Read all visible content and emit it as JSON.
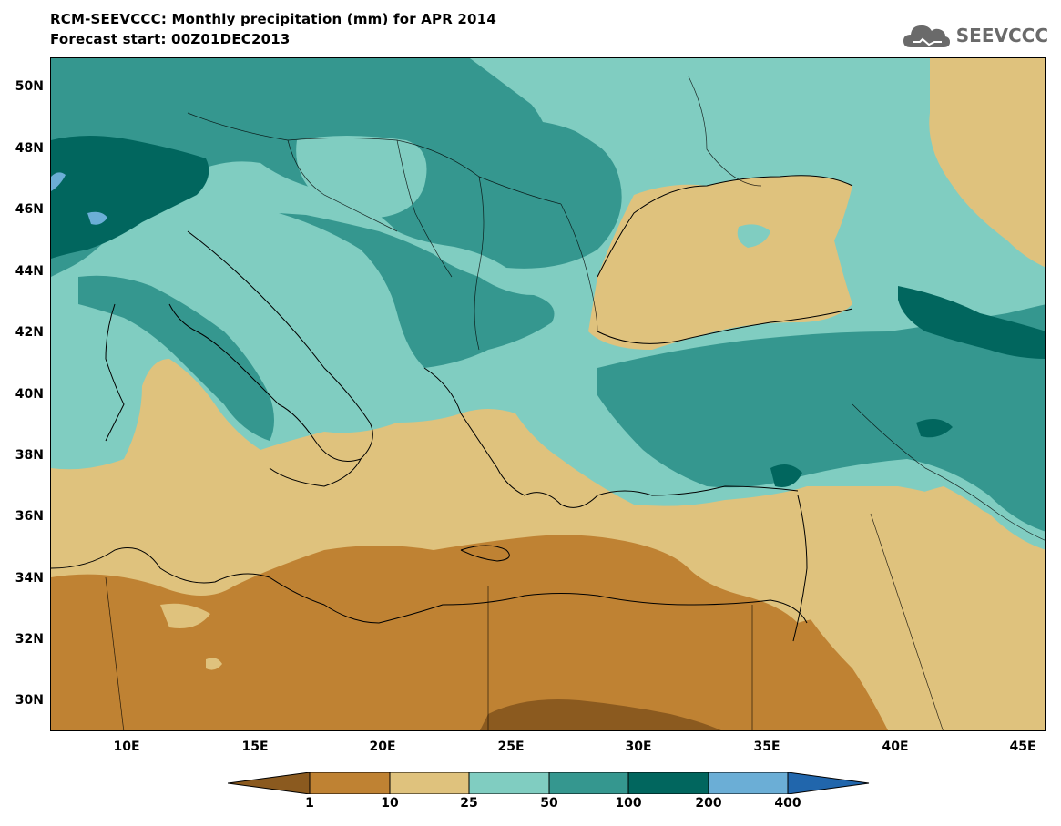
{
  "header": {
    "title": "RCM-SEEVCCC: Monthly precipitation (mm) for APR 2014",
    "subtitle": "Forecast start: 00Z01DEC2013",
    "logo_text": "SEEVCCC"
  },
  "map": {
    "lat_labels": [
      "50N",
      "48N",
      "46N",
      "44N",
      "42N",
      "40N",
      "38N",
      "36N",
      "34N",
      "32N",
      "30N"
    ],
    "lon_labels": [
      "10E",
      "15E",
      "20E",
      "25E",
      "30E",
      "35E",
      "40E",
      "45E"
    ]
  },
  "legend": {
    "thresholds": [
      "1",
      "10",
      "25",
      "50",
      "100",
      "200",
      "400"
    ],
    "colors": [
      "#8b5a1f",
      "#bf8233",
      "#dfc27d",
      "#80cdc1",
      "#35978f",
      "#01665e",
      "#6baed6",
      "#2166ac"
    ]
  }
}
